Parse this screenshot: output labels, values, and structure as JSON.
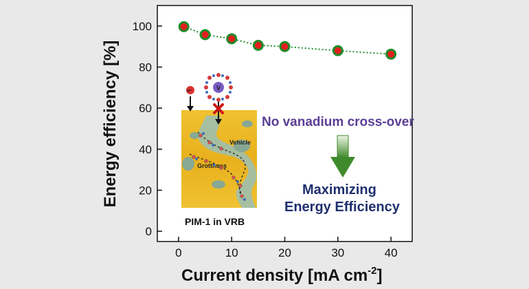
{
  "chart_data": {
    "type": "line",
    "title": "",
    "xlabel": "Current density [mA cm",
    "xlabel_exponent": "-2",
    "xlabel_close": "]",
    "ylabel": "Energy efficiency [%]",
    "xlim": [
      -4,
      44
    ],
    "ylim": [
      -5,
      110
    ],
    "x_ticks": [
      0,
      10,
      20,
      30,
      40
    ],
    "y_ticks": [
      0,
      20,
      40,
      60,
      80,
      100
    ],
    "series": [
      {
        "x": [
          1,
          5,
          10,
          15,
          20,
          30,
          40
        ],
        "y": [
          99.7,
          95.8,
          93.8,
          90.6,
          90.0,
          88.0,
          86.3
        ]
      }
    ],
    "colors": {
      "marker_fill": "#e02020",
      "marker_edge": "#1f8c2a",
      "line": "#1f8c2a"
    },
    "annotations": {
      "no_crossover": "No vanadium cross-over",
      "maximizing_line1": "Maximizing",
      "maximizing_line2": "Energy Efficiency",
      "inset_caption": "PIM-1 in VRB",
      "inset_vehicle": "Vehicle",
      "inset_grotthuss": "Grotthuss",
      "inset_proton": "H⁺",
      "inset_vanadium": "V"
    }
  }
}
